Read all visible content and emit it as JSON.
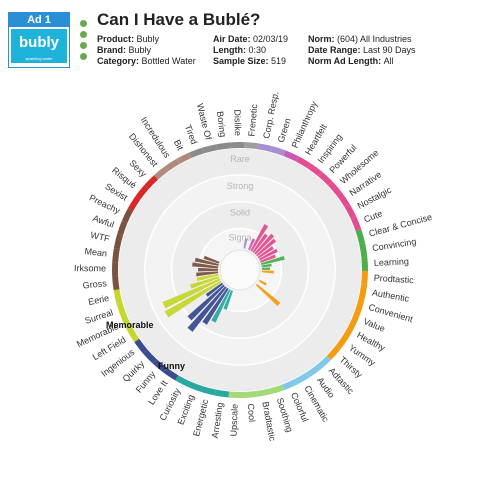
{
  "ad": {
    "badge": "Ad 1",
    "brand_logo_text": "bubly",
    "brand_logo_sub": "sparkling water",
    "status_dots": [
      "#6aa84f",
      "#6aa84f",
      "#6aa84f",
      "#6aa84f"
    ],
    "title": "Can I Have a Bublé?"
  },
  "meta": {
    "col1": [
      {
        "label": "Product",
        "value": "Bubly"
      },
      {
        "label": "Brand",
        "value": "Bubly"
      },
      {
        "label": "Category",
        "value": "Bottled Water"
      }
    ],
    "col2": [
      {
        "label": "Air Date",
        "value": "02/03/19"
      },
      {
        "label": "Length",
        "value": "0:30"
      },
      {
        "label": "Sample Size",
        "value": "519"
      }
    ],
    "col3": [
      {
        "label": "Norm",
        "value": "(604) All Industries"
      },
      {
        "label": "Date Range",
        "value": "Last 90 Days"
      },
      {
        "label": "Norm Ad Length",
        "value": "All"
      }
    ]
  },
  "chart_data": {
    "type": "radial-bar",
    "ring_labels": [
      "Rare",
      "Strong",
      "Solid",
      "Signa"
    ],
    "callouts": [
      "Memorable",
      "Funny"
    ],
    "segments": [
      {
        "name": "Frenetic",
        "color": "#9e9e9e"
      },
      {
        "name": "Corp. Resp.",
        "color": "#a58fd0"
      },
      {
        "name": "Green",
        "color": "#a58fd0"
      },
      {
        "name": "Philanthropy",
        "color": "#c65db3"
      },
      {
        "name": "Heartfelt",
        "color": "#e14d8e"
      },
      {
        "name": "Inspiring",
        "color": "#e14d8e"
      },
      {
        "name": "Powerful",
        "color": "#e14d8e"
      },
      {
        "name": "Wholesome",
        "color": "#e14d8e"
      },
      {
        "name": "Narrative",
        "color": "#e14d8e"
      },
      {
        "name": "Nostalgic",
        "color": "#e14d8e"
      },
      {
        "name": "Cute",
        "color": "#e14d8e"
      },
      {
        "name": "Clear & Concise",
        "color": "#4cae4c"
      },
      {
        "name": "Convincing",
        "color": "#4cae4c"
      },
      {
        "name": "Learning",
        "color": "#4cae4c"
      },
      {
        "name": "Prodtastic",
        "color": "#f39c12"
      },
      {
        "name": "Authentic",
        "color": "#f39c12"
      },
      {
        "name": "Convenient",
        "color": "#f39c12"
      },
      {
        "name": "Value",
        "color": "#f39c12"
      },
      {
        "name": "Healthy",
        "color": "#f39c12"
      },
      {
        "name": "Yummy",
        "color": "#f39c12"
      },
      {
        "name": "Thirsty",
        "color": "#f39c12"
      },
      {
        "name": "Adtastic",
        "color": "#7fc8e8"
      },
      {
        "name": "Audio",
        "color": "#7fc8e8"
      },
      {
        "name": "Cinematic",
        "color": "#7fc8e8"
      },
      {
        "name": "Colorful",
        "color": "#7fc8e8"
      },
      {
        "name": "Soothing",
        "color": "#a3d977"
      },
      {
        "name": "Bradtastic",
        "color": "#a3d977"
      },
      {
        "name": "Cool",
        "color": "#a3d977"
      },
      {
        "name": "Upscale",
        "color": "#a3d977"
      },
      {
        "name": "Arresting",
        "color": "#2aa8a0"
      },
      {
        "name": "Energetic",
        "color": "#2aa8a0"
      },
      {
        "name": "Exciting",
        "color": "#2aa8a0"
      },
      {
        "name": "Curiosity",
        "color": "#2aa8a0"
      },
      {
        "name": "Love It",
        "color": "#3a4d8f"
      },
      {
        "name": "Funny",
        "color": "#3a4d8f"
      },
      {
        "name": "Quirky",
        "color": "#3a4d8f"
      },
      {
        "name": "Ingenious",
        "color": "#3a4d8f"
      },
      {
        "name": "Left Field",
        "color": "#c5d62d"
      },
      {
        "name": "Memorable",
        "color": "#c5d62d"
      },
      {
        "name": "Surreal",
        "color": "#c5d62d"
      },
      {
        "name": "Eerie",
        "color": "#c5d62d"
      },
      {
        "name": "Gross",
        "color": "#7a5240"
      },
      {
        "name": "Irksome",
        "color": "#7a5240"
      },
      {
        "name": "Mean",
        "color": "#7a5240"
      },
      {
        "name": "WTF",
        "color": "#7a5240"
      },
      {
        "name": "Awful",
        "color": "#7a5240"
      },
      {
        "name": "Preachy",
        "color": "#7a5240"
      },
      {
        "name": "Sexist",
        "color": "#d62828"
      },
      {
        "name": "Risqué",
        "color": "#d62828"
      },
      {
        "name": "Sexy",
        "color": "#d62828"
      },
      {
        "name": "Dishonest",
        "color": "#b08a7a"
      },
      {
        "name": "Incredulous",
        "color": "#b08a7a"
      },
      {
        "name": "Bit",
        "color": "#b08a7a"
      },
      {
        "name": "Tired",
        "color": "#8b8b8b"
      },
      {
        "name": "Waste Of",
        "color": "#8b8b8b"
      },
      {
        "name": "Boring",
        "color": "#8b8b8b"
      },
      {
        "name": "Dislike",
        "color": "#8b8b8b"
      }
    ],
    "bars": [
      {
        "label": "Corp. Resp.",
        "value": 0.1,
        "color": "#a58fd0"
      },
      {
        "label": "Philanthropy",
        "value": 0.12,
        "color": "#c65db3"
      },
      {
        "label": "Heartfelt",
        "value": 0.3,
        "color": "#e14d8e"
      },
      {
        "label": "Inspiring",
        "value": 0.22,
        "color": "#e14d8e"
      },
      {
        "label": "Powerful",
        "value": 0.26,
        "color": "#e14d8e"
      },
      {
        "label": "Wholesome",
        "value": 0.24,
        "color": "#e14d8e"
      },
      {
        "label": "Narrative",
        "value": 0.18,
        "color": "#e14d8e"
      },
      {
        "label": "Nostalgic",
        "value": 0.2,
        "color": "#e14d8e"
      },
      {
        "label": "Cute",
        "value": 0.16,
        "color": "#e14d8e"
      },
      {
        "label": "Clear & Concise",
        "value": 0.24,
        "color": "#4cae4c"
      },
      {
        "label": "Convincing",
        "value": 0.1,
        "color": "#4cae4c"
      },
      {
        "label": "Learning",
        "value": 0.08,
        "color": "#4cae4c"
      },
      {
        "label": "Prodtastic",
        "value": 0.12,
        "color": "#f39c12"
      },
      {
        "label": "Healthy",
        "value": 0.08,
        "color": "#f39c12"
      },
      {
        "label": "Thirsty",
        "value": 0.3,
        "color": "#f39c12"
      },
      {
        "label": "Curiosity",
        "value": 0.36,
        "color": "#2aa8a0"
      },
      {
        "label": "Exciting",
        "value": 0.2,
        "color": "#2aa8a0"
      },
      {
        "label": "Love It",
        "value": 0.42,
        "color": "#3a4d8f"
      },
      {
        "label": "Funny",
        "value": 0.56,
        "color": "#3a4d8f"
      },
      {
        "label": "Quirky",
        "value": 0.48,
        "color": "#3a4d8f"
      },
      {
        "label": "Ingenious",
        "value": 0.2,
        "color": "#3a4d8f"
      },
      {
        "label": "Left Field",
        "value": 0.64,
        "color": "#c5d62d"
      },
      {
        "label": "Memorable",
        "value": 0.62,
        "color": "#c5d62d"
      },
      {
        "label": "Surreal",
        "value": 0.3,
        "color": "#c5d62d"
      },
      {
        "label": "Eerie",
        "value": 0.22,
        "color": "#c5d62d"
      },
      {
        "label": "Gross",
        "value": 0.22,
        "color": "#7a5240"
      },
      {
        "label": "Irksome",
        "value": 0.2,
        "color": "#7a5240"
      },
      {
        "label": "Mean",
        "value": 0.26,
        "color": "#7a5240"
      },
      {
        "label": "WTF",
        "value": 0.24,
        "color": "#7a5240"
      },
      {
        "label": "Awful",
        "value": 0.16,
        "color": "#7a5240"
      }
    ]
  }
}
